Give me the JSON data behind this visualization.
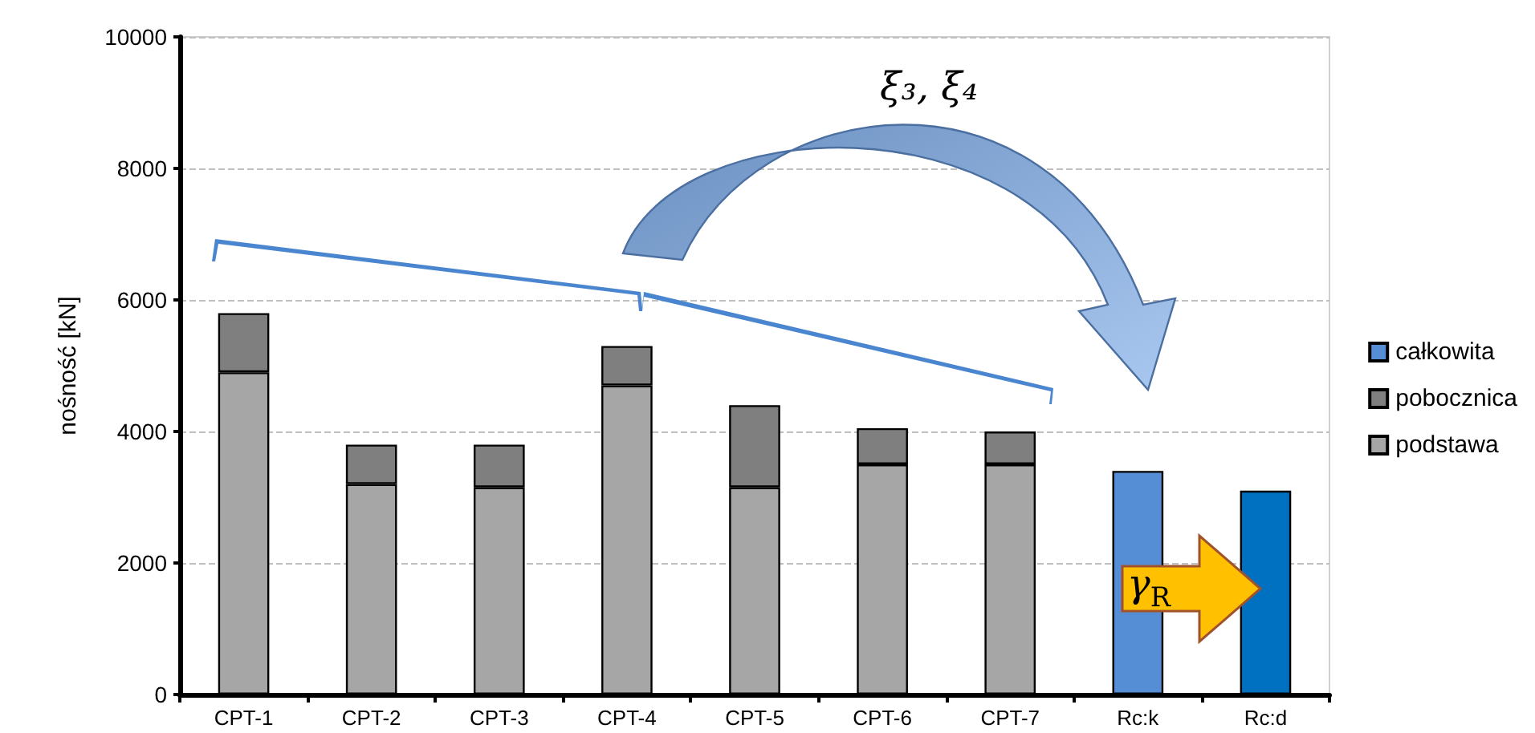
{
  "chart_data": {
    "type": "bar",
    "ylabel": "nośność [kN]",
    "categories": [
      "CPT-1",
      "CPT-2",
      "CPT-3",
      "CPT-4",
      "CPT-5",
      "CPT-6",
      "CPT-7",
      "Rc:k",
      "Rc:d"
    ],
    "stacked": true,
    "series": [
      {
        "name": "podstawa",
        "color": "#a6a6a6",
        "values": [
          4900,
          3200,
          3150,
          4700,
          3150,
          3500,
          3500,
          null,
          null
        ]
      },
      {
        "name": "pobocznica",
        "color": "#7f7f7f",
        "values": [
          900,
          600,
          650,
          600,
          1250,
          550,
          500,
          null,
          null
        ]
      },
      {
        "name": "całkowita",
        "color": "#558ed5",
        "colors": [
          null,
          null,
          null,
          null,
          null,
          null,
          null,
          "#558ed5",
          "#0070c0"
        ],
        "values": [
          null,
          null,
          null,
          null,
          null,
          null,
          null,
          3400,
          3100
        ]
      }
    ],
    "ylim": [
      0,
      10000
    ],
    "yticks": [
      0,
      2000,
      4000,
      6000,
      8000,
      10000
    ],
    "grid": "y",
    "legend": "right",
    "annotations": [
      "ξ₃, ξ₄",
      "γ$_{R}$"
    ]
  }
}
